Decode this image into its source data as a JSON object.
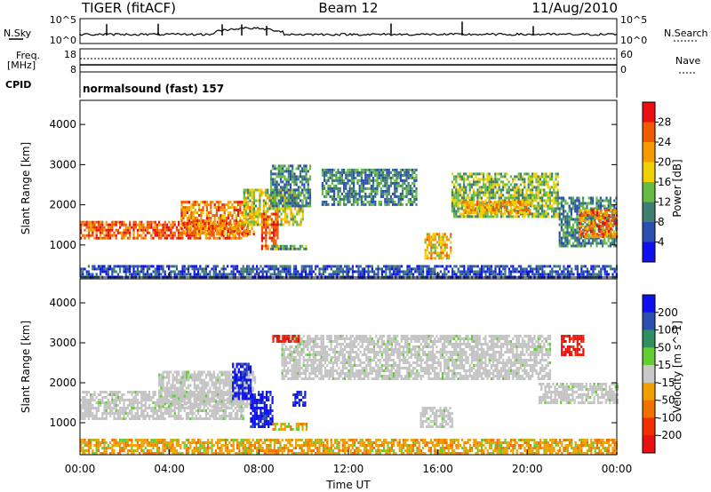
{
  "header": {
    "radar": "TIGER (fitACF)",
    "beam": "Beam 12",
    "date": "11/Aug/2010"
  },
  "panels": {
    "nsky": {
      "label": "N.Sky",
      "ticks": [
        "10^5",
        "10^0"
      ],
      "right_label": "N.Search",
      "right_ticks": [
        "10^5",
        "10^0"
      ]
    },
    "freq": {
      "label_top": "Freq.",
      "label_unit": "[MHz]",
      "ticks": [
        "18",
        "8"
      ],
      "right_label": "Nave",
      "right_ticks": [
        "60",
        "0"
      ]
    },
    "cpid": {
      "label": "CPID",
      "mode_text": "normalsound (fast) 157"
    }
  },
  "colors": {
    "power_scale": [
      "#1010ee",
      "#2a4fb0",
      "#3f7f6f",
      "#66bb44",
      "#f0d000",
      "#f59a00",
      "#f05a00",
      "#e81010"
    ],
    "velocity_scale": [
      "#1010ee",
      "#2a4fb0",
      "#2f8f5f",
      "#66cc33",
      "#c8c8c8",
      "#f0a000",
      "#f07000",
      "#f03000",
      "#e81010"
    ],
    "velocity_gray": "#c4c4c4"
  },
  "chart_data": [
    {
      "type": "heatmap",
      "panel": "power",
      "ylabel": "Slant Range [km]",
      "xlim_hours": [
        0,
        24
      ],
      "ylim_km": [
        200,
        4600
      ],
      "yticks": [
        1000,
        2000,
        3000,
        4000
      ],
      "colorbar": {
        "label": "Power [dB]",
        "ticks": [
          4,
          8,
          12,
          16,
          20,
          24,
          28
        ],
        "range": [
          0,
          32
        ]
      },
      "bands": [
        {
          "t0": 0.0,
          "t1": 7.5,
          "r0": 1200,
          "r1": 1600,
          "value": 26
        },
        {
          "t0": 4.5,
          "t1": 7.8,
          "r0": 1250,
          "r1": 2100,
          "value": 24
        },
        {
          "t0": 7.3,
          "t1": 10.0,
          "r0": 1500,
          "r1": 2400,
          "value": 16
        },
        {
          "t0": 8.1,
          "t1": 8.8,
          "r0": 900,
          "r1": 1800,
          "value": 26
        },
        {
          "t0": 8.5,
          "t1": 10.2,
          "r0": 900,
          "r1": 1000,
          "value": 12
        },
        {
          "t0": 8.5,
          "t1": 10.3,
          "r0": 2000,
          "r1": 3000,
          "value": 10
        },
        {
          "t0": 10.8,
          "t1": 15.0,
          "r0": 2000,
          "r1": 2900,
          "value": 10
        },
        {
          "t0": 15.4,
          "t1": 16.6,
          "r0": 700,
          "r1": 1300,
          "value": 20
        },
        {
          "t0": 16.6,
          "t1": 21.4,
          "r0": 1700,
          "r1": 2800,
          "value": 14
        },
        {
          "t0": 17.1,
          "t1": 20.1,
          "r0": 1800,
          "r1": 2100,
          "value": 22
        },
        {
          "t0": 21.4,
          "t1": 24.0,
          "r0": 1000,
          "r1": 2200,
          "value": 10
        },
        {
          "t0": 22.3,
          "t1": 24.0,
          "r0": 1200,
          "r1": 1900,
          "value": 24
        },
        {
          "t0": 0.0,
          "t1": 24.0,
          "r0": 200,
          "r1": 500,
          "value": 6
        }
      ]
    },
    {
      "type": "heatmap",
      "panel": "velocity",
      "ylabel": "Slant Range [km]",
      "xlabel": "Time UT",
      "xlim_hours": [
        0,
        24
      ],
      "xticks": [
        "00:00",
        "04:00",
        "08:00",
        "12:00",
        "16:00",
        "20:00",
        "00:00"
      ],
      "ylim_km": [
        200,
        4600
      ],
      "yticks": [
        1000,
        2000,
        3000,
        4000
      ],
      "colorbar": {
        "label": "Velocity [m s^-1]",
        "ticks": [
          200,
          100,
          50,
          15,
          -15,
          -50,
          -100,
          -200
        ]
      },
      "bands": [
        {
          "t0": 0.0,
          "t1": 7.3,
          "r0": 1100,
          "r1": 1800,
          "value": 0
        },
        {
          "t0": 3.5,
          "t1": 7.8,
          "r0": 1400,
          "r1": 2300,
          "value": 0
        },
        {
          "t0": 6.8,
          "t1": 7.6,
          "r0": 1600,
          "r1": 2500,
          "value": 200
        },
        {
          "t0": 7.6,
          "t1": 8.6,
          "r0": 900,
          "r1": 1800,
          "value": 200
        },
        {
          "t0": 8.6,
          "t1": 10.2,
          "r0": 800,
          "r1": 1000,
          "value": -80
        },
        {
          "t0": 9.5,
          "t1": 10.1,
          "r0": 1400,
          "r1": 1800,
          "value": 200
        },
        {
          "t0": 9.0,
          "t1": 21.0,
          "r0": 2100,
          "r1": 3200,
          "value": 0
        },
        {
          "t0": 15.2,
          "t1": 16.6,
          "r0": 900,
          "r1": 1400,
          "value": 0
        },
        {
          "t0": 20.5,
          "t1": 24.0,
          "r0": 1500,
          "r1": 2000,
          "value": 0
        },
        {
          "t0": 8.6,
          "t1": 9.8,
          "r0": 3000,
          "r1": 3200,
          "value": -200
        },
        {
          "t0": 21.5,
          "t1": 22.5,
          "r0": 2700,
          "r1": 3200,
          "value": -200
        },
        {
          "t0": 0.0,
          "t1": 24.0,
          "r0": 200,
          "r1": 600,
          "value": -60
        }
      ]
    }
  ]
}
